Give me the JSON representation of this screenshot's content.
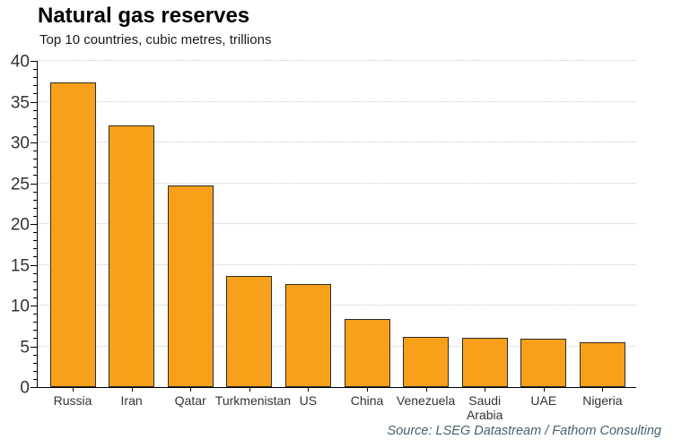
{
  "chart": {
    "title": "Natural gas reserves",
    "subtitle": "Top 10 countries, cubic metres, trillions",
    "source": "Source: LSEG Datastream / Fathom Consulting"
  },
  "chart_data": {
    "type": "bar",
    "title": "Natural gas reserves",
    "subtitle": "Top 10 countries, cubic metres, trillions",
    "categories": [
      "Russia",
      "Iran",
      "Qatar",
      "Turkmenistan",
      "US",
      "China",
      "Venezuela",
      "Saudi Arabia",
      "UAE",
      "Nigeria"
    ],
    "values": [
      37.4,
      32.1,
      24.7,
      13.6,
      12.6,
      8.3,
      6.2,
      6.0,
      5.9,
      5.5
    ],
    "xlabel": "",
    "ylabel": "",
    "ylim": [
      0,
      40
    ],
    "ytick_interval": 5,
    "minor_tick_interval": 1,
    "ytick_labels": [
      "0",
      "5",
      "10",
      "15",
      "20",
      "25",
      "30",
      "35",
      "40"
    ],
    "grid": "horizontal-dotted",
    "legend": "none",
    "bar_color": "#F9A01B",
    "bar_border_color": "#2B2B2B",
    "gridline_color": "#C9C9C9",
    "axis_color": "#000000",
    "tick_label_color": "#333333",
    "source": "Source: LSEG Datastream / Fathom Consulting"
  }
}
